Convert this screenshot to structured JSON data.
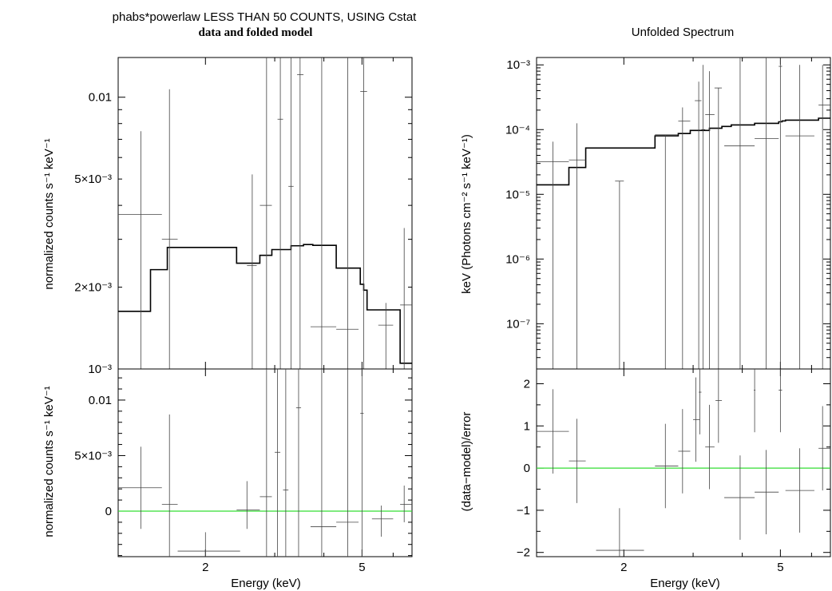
{
  "chart_data": [
    {
      "panel": "left-top",
      "type": "step-with-errorbars",
      "title": "phabs*powerlaw LESS THAN 50 COUNTS, USING Cstat",
      "subtitle": "data and folded model",
      "ylabel": "normalized counts s⁻¹ keV⁻¹",
      "xscale": "log",
      "yscale": "log",
      "xlim": [
        1.2,
        6.7
      ],
      "ylim": [
        0.001,
        0.014
      ],
      "yticks": [
        {
          "value": 0.01,
          "label": "0.01"
        },
        {
          "value": 0.005,
          "label": "5×10⁻³"
        },
        {
          "value": 0.002,
          "label": "2×10⁻³"
        },
        {
          "value": 0.001,
          "label": "10⁻³"
        }
      ],
      "model_step": [
        [
          1.2,
          0.00163
        ],
        [
          1.45,
          0.00232
        ],
        [
          1.6,
          0.0028
        ],
        [
          2.4,
          0.00245
        ],
        [
          2.75,
          0.00262
        ],
        [
          2.95,
          0.00275
        ],
        [
          3.3,
          0.00284
        ],
        [
          3.55,
          0.00287
        ],
        [
          3.75,
          0.00285
        ],
        [
          4.3,
          0.00235
        ],
        [
          4.95,
          0.00205
        ],
        [
          5.05,
          0.00195
        ],
        [
          5.15,
          0.00165
        ],
        [
          6.25,
          0.00105
        ],
        [
          6.7,
          0.00105
        ]
      ],
      "data_points": [
        {
          "x": 1.37,
          "xlo": 1.2,
          "xhi": 1.55,
          "y": 0.0037,
          "ylo": 0.001,
          "yhi": 0.0075
        },
        {
          "x": 1.62,
          "xlo": 1.55,
          "xhi": 1.7,
          "y": 0.003,
          "ylo": 0.001,
          "yhi": 0.0107
        },
        {
          "x": 2.63,
          "xlo": 2.55,
          "xhi": 2.7,
          "y": 0.0024,
          "ylo": 0.001,
          "yhi": 0.0052
        },
        {
          "x": 2.86,
          "xlo": 2.75,
          "xhi": 2.95,
          "y": 0.004,
          "ylo": 0.001,
          "yhi": 0.014
        },
        {
          "x": 3.1,
          "xlo": 3.05,
          "xhi": 3.15,
          "y": 0.0083,
          "ylo": 0.001,
          "yhi": 0.014
        },
        {
          "x": 3.3,
          "xlo": 3.25,
          "xhi": 3.35,
          "y": 0.0047,
          "ylo": 0.001,
          "yhi": 0.014
        },
        {
          "x": 3.48,
          "xlo": 3.42,
          "xhi": 3.55,
          "y": 0.0121,
          "ylo": 0.001,
          "yhi": 0.014
        },
        {
          "x": 3.95,
          "xlo": 3.7,
          "xhi": 4.3,
          "y": 0.00143,
          "ylo": 0.001,
          "yhi": 0.014
        },
        {
          "x": 4.6,
          "xlo": 4.3,
          "xhi": 4.9,
          "y": 0.0014,
          "ylo": 0.001,
          "yhi": 0.014
        },
        {
          "x": 5.05,
          "xlo": 4.95,
          "xhi": 5.15,
          "y": 0.0105,
          "ylo": 0.001,
          "yhi": 0.014
        },
        {
          "x": 5.75,
          "xlo": 5.5,
          "xhi": 6.0,
          "y": 0.00145,
          "ylo": 0.001,
          "yhi": 0.00175
        },
        {
          "x": 6.4,
          "xlo": 6.25,
          "xhi": 6.7,
          "y": 0.00172,
          "ylo": 0.001,
          "yhi": 0.0033
        }
      ]
    },
    {
      "panel": "left-bottom",
      "type": "residuals",
      "ylabel": "normalized counts s⁻¹ keV⁻¹",
      "xlabel": "Energy (keV)",
      "xscale": "log",
      "yscale": "linear",
      "xlim": [
        1.2,
        6.7
      ],
      "ylim": [
        -0.0041,
        0.0128
      ],
      "xticks": [
        {
          "value": 2,
          "label": "2"
        },
        {
          "value": 5,
          "label": "5"
        }
      ],
      "yticks": [
        {
          "value": 0.01,
          "label": "0.01"
        },
        {
          "value": 0.005,
          "label": "5×10⁻³"
        },
        {
          "value": 0,
          "label": "0"
        }
      ],
      "zero_line_color": "#33dd33",
      "data_points": [
        {
          "x": 1.37,
          "xlo": 1.2,
          "xhi": 1.55,
          "y": 0.0021,
          "ylo": -0.0016,
          "yhi": 0.0058
        },
        {
          "x": 1.62,
          "xlo": 1.55,
          "xhi": 1.7,
          "y": 0.0006,
          "ylo": -0.0041,
          "yhi": 0.0087
        },
        {
          "x": 2.0,
          "xlo": 1.7,
          "xhi": 2.45,
          "y": -0.0036,
          "ylo": -0.0041,
          "yhi": -0.0019
        },
        {
          "x": 2.55,
          "xlo": 2.4,
          "xhi": 2.75,
          "y": 0.0001,
          "ylo": -0.0016,
          "yhi": 0.0027
        },
        {
          "x": 2.86,
          "xlo": 2.75,
          "xhi": 2.95,
          "y": 0.0013,
          "ylo": -0.0041,
          "yhi": 0.0128
        },
        {
          "x": 3.05,
          "xlo": 3.0,
          "xhi": 3.1,
          "y": 0.0053,
          "ylo": -0.0041,
          "yhi": 0.0128
        },
        {
          "x": 3.2,
          "xlo": 3.15,
          "xhi": 3.25,
          "y": 0.0019,
          "ylo": -0.0041,
          "yhi": 0.0128
        },
        {
          "x": 3.45,
          "xlo": 3.4,
          "xhi": 3.5,
          "y": 0.0093,
          "ylo": -0.0041,
          "yhi": 0.0128
        },
        {
          "x": 3.95,
          "xlo": 3.7,
          "xhi": 4.3,
          "y": -0.0014,
          "ylo": -0.0041,
          "yhi": 0.0128
        },
        {
          "x": 4.6,
          "xlo": 4.3,
          "xhi": 4.9,
          "y": -0.001,
          "ylo": -0.0041,
          "yhi": 0.0128
        },
        {
          "x": 5.0,
          "xlo": 4.95,
          "xhi": 5.05,
          "y": 0.0088,
          "ylo": -0.0041,
          "yhi": 0.0128
        },
        {
          "x": 5.6,
          "xlo": 5.3,
          "xhi": 6.0,
          "y": -0.0007,
          "ylo": -0.0023,
          "yhi": 0.0005
        },
        {
          "x": 6.4,
          "xlo": 6.25,
          "xhi": 6.7,
          "y": 0.0006,
          "ylo": -0.001,
          "yhi": 0.0023
        }
      ]
    },
    {
      "panel": "right-top",
      "type": "step-with-errorbars",
      "title": "Unfolded Spectrum",
      "ylabel": "keV (Photons cm⁻² s⁻¹ keV⁻¹)",
      "xscale": "log",
      "yscale": "log",
      "xlim": [
        1.2,
        6.7
      ],
      "ylim": [
        2e-08,
        0.0013
      ],
      "yticks": [
        {
          "value": 0.001,
          "label": "10⁻³"
        },
        {
          "value": 0.0001,
          "label": "10⁻⁴"
        },
        {
          "value": 1e-05,
          "label": "10⁻⁵"
        },
        {
          "value": 1e-06,
          "label": "10⁻⁶"
        },
        {
          "value": 1e-07,
          "label": "10⁻⁷"
        }
      ],
      "model_step": [
        [
          1.2,
          1.4e-05
        ],
        [
          1.45,
          2.6e-05
        ],
        [
          1.6,
          5.2e-05
        ],
        [
          2.4,
          8e-05
        ],
        [
          2.75,
          8.7e-05
        ],
        [
          2.95,
          9.7e-05
        ],
        [
          3.3,
          0.000105
        ],
        [
          3.55,
          0.000112
        ],
        [
          3.75,
          0.000118
        ],
        [
          4.3,
          0.000125
        ],
        [
          4.95,
          0.000132
        ],
        [
          5.05,
          0.000136
        ],
        [
          5.15,
          0.00014
        ],
        [
          6.25,
          0.00015
        ],
        [
          6.7,
          0.00015
        ]
      ],
      "data_points": [
        {
          "x": 1.32,
          "xlo": 1.2,
          "xhi": 1.45,
          "y": 3.2e-05,
          "ylo": 2e-08,
          "yhi": 6.5e-05
        },
        {
          "x": 1.52,
          "xlo": 1.45,
          "xhi": 1.6,
          "y": 3.4e-05,
          "ylo": 2e-08,
          "yhi": 0.000125
        },
        {
          "x": 1.95,
          "xlo": 1.9,
          "xhi": 2.0,
          "y": 1.6e-05,
          "ylo": 2e-08,
          "yhi": 1.6e-05
        },
        {
          "x": 2.55,
          "xlo": 2.4,
          "xhi": 2.75,
          "y": 8.3e-05,
          "ylo": 2e-08,
          "yhi": 8.3e-05
        },
        {
          "x": 2.82,
          "xlo": 2.75,
          "xhi": 2.95,
          "y": 0.000135,
          "ylo": 2e-08,
          "yhi": 0.00022
        },
        {
          "x": 3.1,
          "xlo": 3.03,
          "xhi": 3.15,
          "y": 0.00028,
          "ylo": 2e-08,
          "yhi": 0.00055
        },
        {
          "x": 3.18,
          "xlo": 3.15,
          "xhi": 3.22,
          "y": 0.0001,
          "ylo": 2e-08,
          "yhi": 0.001
        },
        {
          "x": 3.3,
          "xlo": 3.22,
          "xhi": 3.4,
          "y": 0.00017,
          "ylo": 2e-08,
          "yhi": 0.0008
        },
        {
          "x": 3.48,
          "xlo": 3.4,
          "xhi": 3.55,
          "y": 0.00044,
          "ylo": 2e-08,
          "yhi": 0.00044
        },
        {
          "x": 3.95,
          "xlo": 3.6,
          "xhi": 4.3,
          "y": 5.6e-05,
          "ylo": 2e-08,
          "yhi": 0.0013
        },
        {
          "x": 4.6,
          "xlo": 4.3,
          "xhi": 4.95,
          "y": 7.3e-05,
          "ylo": 2e-08,
          "yhi": 0.0013
        },
        {
          "x": 5.0,
          "xlo": 4.95,
          "xhi": 5.05,
          "y": 0.00095,
          "ylo": 2e-08,
          "yhi": 0.0013
        },
        {
          "x": 5.6,
          "xlo": 5.15,
          "xhi": 6.1,
          "y": 8e-05,
          "ylo": 2e-08,
          "yhi": 0.001
        },
        {
          "x": 6.4,
          "xlo": 6.25,
          "xhi": 6.7,
          "y": 0.00024,
          "ylo": 2e-08,
          "yhi": 0.001
        }
      ]
    },
    {
      "panel": "right-bottom",
      "type": "residuals",
      "ylabel": "(data−model)/error",
      "xlabel": "Energy (keV)",
      "xscale": "log",
      "yscale": "linear",
      "xlim": [
        1.2,
        6.7
      ],
      "ylim": [
        -2.1,
        2.35
      ],
      "xticks": [
        {
          "value": 2,
          "label": "2"
        },
        {
          "value": 5,
          "label": "5"
        }
      ],
      "yticks": [
        {
          "value": 2,
          "label": "2"
        },
        {
          "value": 1,
          "label": "1"
        },
        {
          "value": 0,
          "label": "0"
        },
        {
          "value": -1,
          "label": "−1"
        },
        {
          "value": -2,
          "label": "−2"
        }
      ],
      "zero_line_color": "#33dd33",
      "data_points": [
        {
          "x": 1.32,
          "xlo": 1.2,
          "xhi": 1.45,
          "y": 0.87,
          "ylo": -0.13,
          "yhi": 1.87
        },
        {
          "x": 1.52,
          "xlo": 1.45,
          "xhi": 1.6,
          "y": 0.17,
          "ylo": -0.83,
          "yhi": 1.17
        },
        {
          "x": 1.95,
          "xlo": 1.7,
          "xhi": 2.25,
          "y": -1.95,
          "ylo": -2.1,
          "yhi": -0.95
        },
        {
          "x": 2.55,
          "xlo": 2.4,
          "xhi": 2.75,
          "y": 0.05,
          "ylo": -0.95,
          "yhi": 1.05
        },
        {
          "x": 2.82,
          "xlo": 2.75,
          "xhi": 2.95,
          "y": 0.4,
          "ylo": -0.6,
          "yhi": 1.4
        },
        {
          "x": 3.05,
          "xlo": 3.0,
          "xhi": 3.12,
          "y": 1.15,
          "ylo": 0.15,
          "yhi": 2.15
        },
        {
          "x": 3.12,
          "xlo": 3.1,
          "xhi": 3.15,
          "y": 1.8,
          "ylo": 0.8,
          "yhi": 2.35
        },
        {
          "x": 3.3,
          "xlo": 3.22,
          "xhi": 3.4,
          "y": 0.5,
          "ylo": -0.5,
          "yhi": 1.5
        },
        {
          "x": 3.48,
          "xlo": 3.42,
          "xhi": 3.55,
          "y": 1.6,
          "ylo": 0.6,
          "yhi": 2.35
        },
        {
          "x": 3.95,
          "xlo": 3.6,
          "xhi": 4.3,
          "y": -0.7,
          "ylo": -1.7,
          "yhi": 0.3
        },
        {
          "x": 4.3,
          "xlo": 4.28,
          "xhi": 4.32,
          "y": 1.85,
          "ylo": 0.85,
          "yhi": 2.35
        },
        {
          "x": 4.6,
          "xlo": 4.3,
          "xhi": 4.95,
          "y": -0.57,
          "ylo": -1.57,
          "yhi": 0.43
        },
        {
          "x": 5.0,
          "xlo": 4.95,
          "xhi": 5.05,
          "y": 1.85,
          "ylo": 0.85,
          "yhi": 2.35
        },
        {
          "x": 5.6,
          "xlo": 5.15,
          "xhi": 6.1,
          "y": -0.53,
          "ylo": -1.53,
          "yhi": 0.47
        },
        {
          "x": 6.4,
          "xlo": 6.25,
          "xhi": 6.7,
          "y": 0.47,
          "ylo": -0.53,
          "yhi": 1.47
        }
      ]
    }
  ]
}
